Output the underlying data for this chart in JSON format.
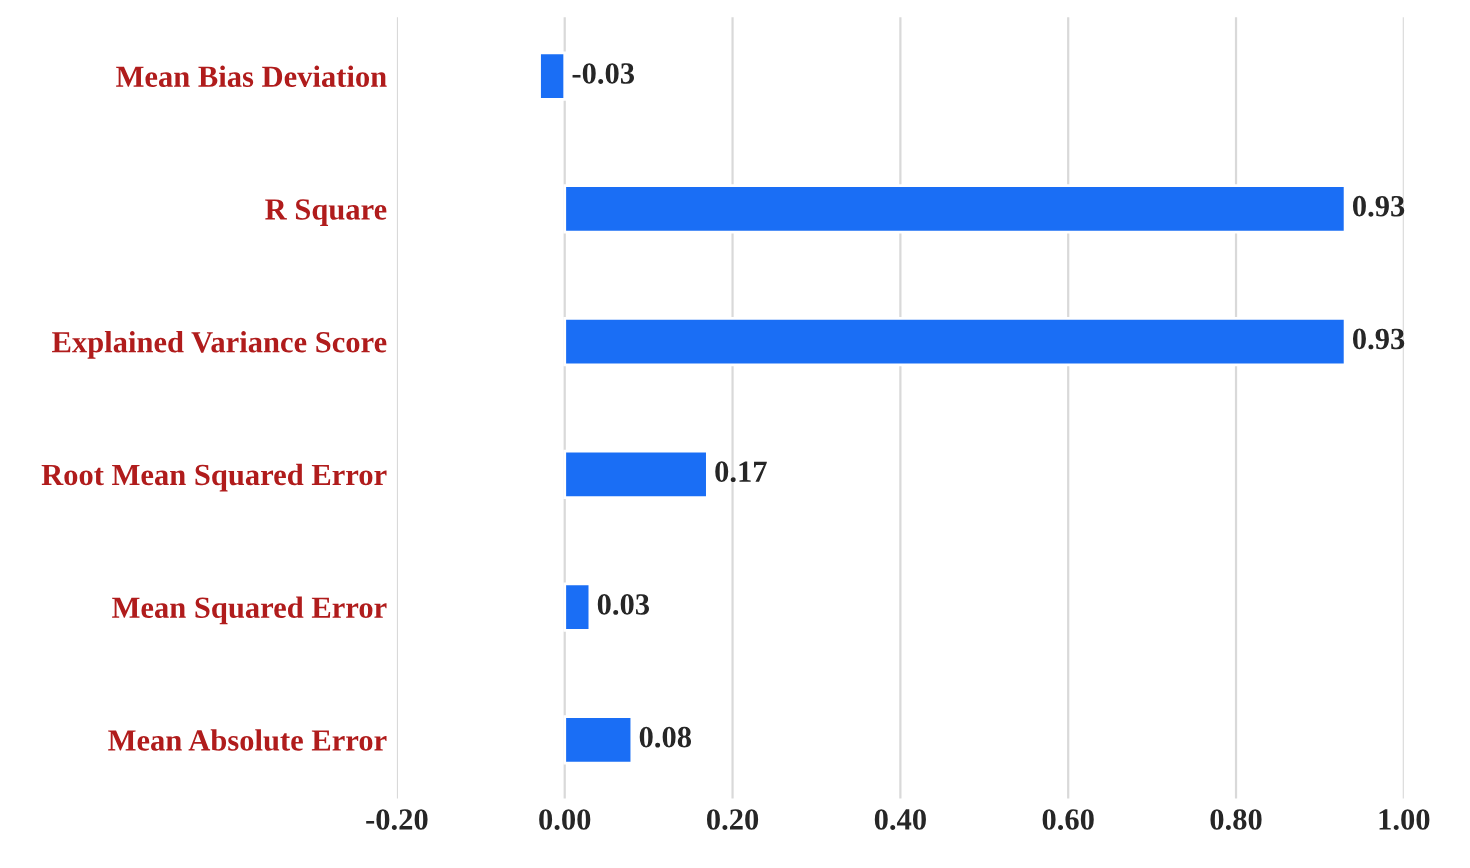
{
  "chart_data": {
    "type": "bar",
    "orientation": "horizontal",
    "categories": [
      "Mean Bias Deviation",
      "R Square",
      "Explained Variance Score",
      "Root Mean Squared Error",
      "Mean Squared Error",
      "Mean Absolute Error"
    ],
    "values": [
      -0.03,
      0.93,
      0.93,
      0.17,
      0.03,
      0.08
    ],
    "color": "#1a6ef5",
    "xlim": [
      -0.2,
      1.0
    ],
    "xticks": [
      {
        "value": -0.2,
        "label": "-0.20"
      },
      {
        "value": 0,
        "label": "0.00"
      },
      {
        "value": 0.2,
        "label": "0.20"
      },
      {
        "value": 0.4,
        "label": "0.40"
      },
      {
        "value": 0.6,
        "label": "0.60"
      },
      {
        "value": 0.8,
        "label": "0.80"
      },
      {
        "value": 1.0,
        "label": "1.00"
      }
    ],
    "grid": "x",
    "data_labels": true,
    "legend": false
  }
}
